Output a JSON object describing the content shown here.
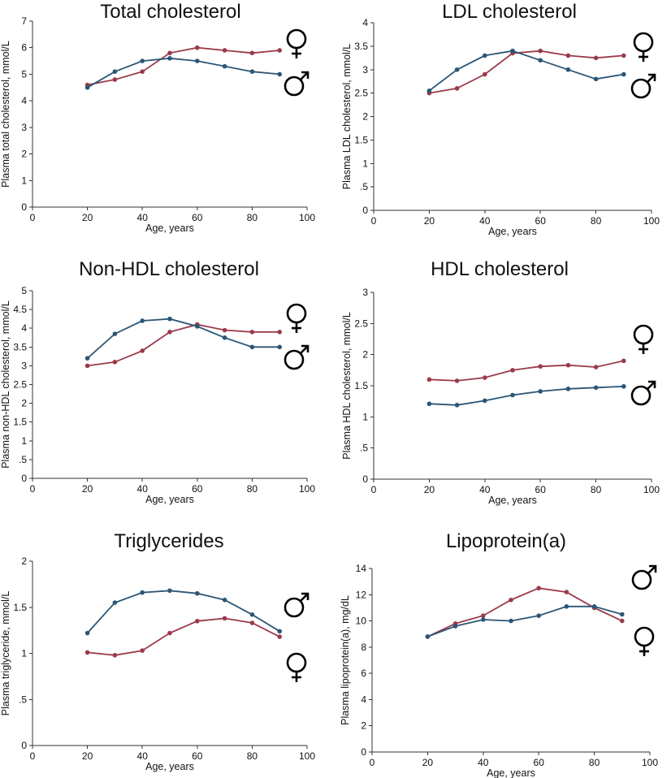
{
  "colors": {
    "female": "#9b3a4a",
    "male": "#2b5675",
    "axis": "#333333",
    "text": "#111111"
  },
  "chart_data": [
    {
      "type": "line",
      "title": "Total cholesterol",
      "xlabel": "Age, years",
      "ylabel": "Plasma total cholesterol, mmol/L",
      "xlim": [
        0,
        100
      ],
      "ylim": [
        0,
        7
      ],
      "xticks": [
        "0",
        "20",
        "40",
        "60",
        "80",
        "100"
      ],
      "yticks": [
        "0",
        "1",
        "2",
        "3",
        "4",
        "5",
        "6",
        "7"
      ],
      "legend": {
        "female": "♀",
        "male": "♂",
        "order": [
          "female",
          "male"
        ]
      },
      "series": [
        {
          "name": "Female",
          "key": "female",
          "x": [
            20,
            30,
            40,
            50,
            60,
            70,
            80,
            90
          ],
          "values": [
            4.6,
            4.8,
            5.1,
            5.8,
            6.0,
            5.9,
            5.8,
            5.9
          ]
        },
        {
          "name": "Male",
          "key": "male",
          "x": [
            20,
            30,
            40,
            50,
            60,
            70,
            80,
            90
          ],
          "values": [
            4.5,
            5.1,
            5.5,
            5.6,
            5.5,
            5.3,
            5.1,
            5.0
          ]
        }
      ]
    },
    {
      "type": "line",
      "title": "LDL cholesterol",
      "xlabel": "Age, years",
      "ylabel": "Plasma LDL cholesterol, mmol/L",
      "xlim": [
        0,
        100
      ],
      "ylim": [
        0,
        4
      ],
      "xticks": [
        "0",
        "20",
        "40",
        "60",
        "80",
        "100"
      ],
      "yticks": [
        "0",
        ".5",
        "1",
        "1.5",
        "2",
        "2.5",
        "3",
        "3.5",
        "4"
      ],
      "legend": {
        "female": "♀",
        "male": "♂",
        "order": [
          "female",
          "male"
        ]
      },
      "series": [
        {
          "name": "Female",
          "key": "female",
          "x": [
            20,
            30,
            40,
            50,
            60,
            70,
            80,
            90
          ],
          "values": [
            2.5,
            2.6,
            2.9,
            3.35,
            3.4,
            3.3,
            3.25,
            3.3
          ]
        },
        {
          "name": "Male",
          "key": "male",
          "x": [
            20,
            30,
            40,
            50,
            60,
            70,
            80,
            90
          ],
          "values": [
            2.55,
            3.0,
            3.3,
            3.4,
            3.2,
            3.0,
            2.8,
            2.9
          ]
        }
      ]
    },
    {
      "type": "line",
      "title": "Non-HDL cholesterol",
      "xlabel": "Age, years",
      "ylabel": "Plasma non-HDL cholesterol, mmol/L",
      "xlim": [
        0,
        100
      ],
      "ylim": [
        0,
        5
      ],
      "xticks": [
        "0",
        "20",
        "40",
        "60",
        "80",
        "100"
      ],
      "yticks": [
        "0",
        ".5",
        "1",
        "1.5",
        "2",
        "2.5",
        "3",
        "3.5",
        "4",
        "4.5",
        "5"
      ],
      "legend": {
        "female": "♀",
        "male": "♂",
        "order": [
          "female",
          "male"
        ]
      },
      "series": [
        {
          "name": "Female",
          "key": "female",
          "x": [
            20,
            30,
            40,
            50,
            60,
            70,
            80,
            90
          ],
          "values": [
            3.0,
            3.1,
            3.4,
            3.9,
            4.1,
            3.95,
            3.9,
            3.9
          ]
        },
        {
          "name": "Male",
          "key": "male",
          "x": [
            20,
            30,
            40,
            50,
            60,
            70,
            80,
            90
          ],
          "values": [
            3.2,
            3.85,
            4.2,
            4.25,
            4.05,
            3.75,
            3.5,
            3.5
          ]
        }
      ]
    },
    {
      "type": "line",
      "title": "HDL cholesterol",
      "xlabel": "Age, years",
      "ylabel": "Plasma HDL cholesterol, mmol/L",
      "xlim": [
        0,
        100
      ],
      "ylim": [
        0,
        3
      ],
      "xticks": [
        "0",
        "20",
        "40",
        "60",
        "80",
        "100"
      ],
      "yticks": [
        "0",
        ".5",
        "1",
        "1.5",
        "2",
        "2.5",
        "3"
      ],
      "legend": {
        "female": "♀",
        "male": "♂",
        "order": [
          "female",
          "male"
        ]
      },
      "series": [
        {
          "name": "Female",
          "key": "female",
          "x": [
            20,
            30,
            40,
            50,
            60,
            70,
            80,
            90
          ],
          "values": [
            1.6,
            1.58,
            1.63,
            1.75,
            1.81,
            1.83,
            1.8,
            1.9
          ]
        },
        {
          "name": "Male",
          "key": "male",
          "x": [
            20,
            30,
            40,
            50,
            60,
            70,
            80,
            90
          ],
          "values": [
            1.21,
            1.19,
            1.26,
            1.35,
            1.41,
            1.45,
            1.47,
            1.49
          ]
        }
      ]
    },
    {
      "type": "line",
      "title": "Triglycerides",
      "xlabel": "Age, years",
      "ylabel": "Plasma triglyceride, mmol/L",
      "xlim": [
        0,
        100
      ],
      "ylim": [
        0,
        2
      ],
      "xticks": [
        "0",
        "20",
        "40",
        "60",
        "80",
        "100"
      ],
      "yticks": [
        "0",
        ".5",
        "1",
        "1.5",
        "2"
      ],
      "legend": {
        "female": "♀",
        "male": "♂",
        "order": [
          "male",
          "female"
        ]
      },
      "series": [
        {
          "name": "Female",
          "key": "female",
          "x": [
            20,
            30,
            40,
            50,
            60,
            70,
            80,
            90
          ],
          "values": [
            1.01,
            0.98,
            1.03,
            1.22,
            1.35,
            1.38,
            1.33,
            1.18
          ]
        },
        {
          "name": "Male",
          "key": "male",
          "x": [
            20,
            30,
            40,
            50,
            60,
            70,
            80,
            90
          ],
          "values": [
            1.22,
            1.55,
            1.66,
            1.68,
            1.65,
            1.58,
            1.42,
            1.24
          ]
        }
      ]
    },
    {
      "type": "line",
      "title": "Lipoprotein(a)",
      "xlabel": "Age, years",
      "ylabel": "Plasma lipoprotein(a), mg/dL",
      "xlim": [
        0,
        100
      ],
      "ylim": [
        0,
        14
      ],
      "xticks": [
        "0",
        "20",
        "40",
        "60",
        "80",
        "100"
      ],
      "yticks": [
        "0",
        "2",
        "4",
        "6",
        "8",
        "10",
        "12",
        "14"
      ],
      "legend": {
        "female": "♀",
        "male": "♂",
        "order": [
          "male",
          "female"
        ]
      },
      "series": [
        {
          "name": "Female",
          "key": "female",
          "x": [
            20,
            30,
            40,
            50,
            60,
            70,
            80,
            90
          ],
          "values": [
            8.8,
            9.8,
            10.4,
            11.6,
            12.5,
            12.2,
            11.0,
            10.0
          ]
        },
        {
          "name": "Male",
          "key": "male",
          "x": [
            20,
            30,
            40,
            50,
            60,
            70,
            80,
            90
          ],
          "values": [
            8.8,
            9.6,
            10.1,
            10.0,
            10.4,
            11.1,
            11.1,
            10.5
          ]
        }
      ]
    }
  ]
}
